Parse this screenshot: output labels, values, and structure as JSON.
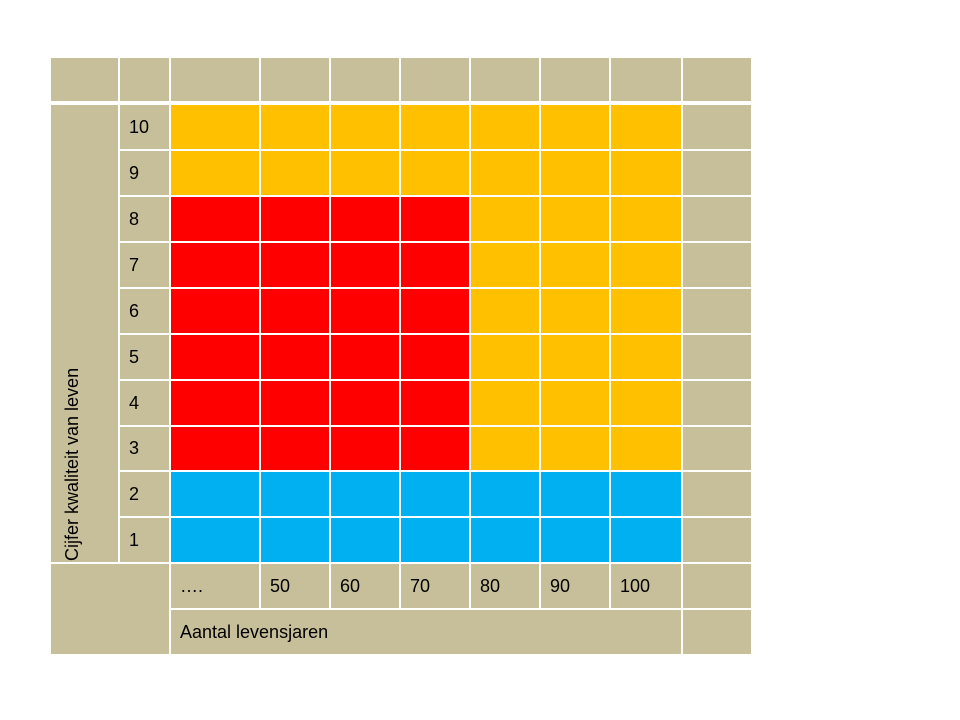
{
  "table": {
    "y_axis_title": "Cijfer kwaliteit van leven",
    "x_axis_title": "Aantal levensjaren",
    "x_labels": [
      "….",
      "50",
      "60",
      "70",
      "80",
      "90",
      "100"
    ],
    "rows": [
      {
        "label": "10",
        "colors": [
          "#ffc000",
          "#ffc000",
          "#ffc000",
          "#ffc000",
          "#ffc000",
          "#ffc000",
          "#ffc000"
        ]
      },
      {
        "label": "9",
        "colors": [
          "#ffc000",
          "#ffc000",
          "#ffc000",
          "#ffc000",
          "#ffc000",
          "#ffc000",
          "#ffc000"
        ]
      },
      {
        "label": "8",
        "colors": [
          "#ff0000",
          "#ff0000",
          "#ff0000",
          "#ff0000",
          "#ffc000",
          "#ffc000",
          "#ffc000"
        ]
      },
      {
        "label": "7",
        "colors": [
          "#ff0000",
          "#ff0000",
          "#ff0000",
          "#ff0000",
          "#ffc000",
          "#ffc000",
          "#ffc000"
        ]
      },
      {
        "label": "6",
        "colors": [
          "#ff0000",
          "#ff0000",
          "#ff0000",
          "#ff0000",
          "#ffc000",
          "#ffc000",
          "#ffc000"
        ]
      },
      {
        "label": "5",
        "colors": [
          "#ff0000",
          "#ff0000",
          "#ff0000",
          "#ff0000",
          "#ffc000",
          "#ffc000",
          "#ffc000"
        ]
      },
      {
        "label": "4",
        "colors": [
          "#ff0000",
          "#ff0000",
          "#ff0000",
          "#ff0000",
          "#ffc000",
          "#ffc000",
          "#ffc000"
        ]
      },
      {
        "label": "3",
        "colors": [
          "#ff0000",
          "#ff0000",
          "#ff0000",
          "#ff0000",
          "#ffc000",
          "#ffc000",
          "#ffc000"
        ]
      },
      {
        "label": "2",
        "colors": [
          "#00b0f0",
          "#00b0f0",
          "#00b0f0",
          "#00b0f0",
          "#00b0f0",
          "#00b0f0",
          "#00b0f0"
        ]
      },
      {
        "label": "1",
        "colors": [
          "#00b0f0",
          "#00b0f0",
          "#00b0f0",
          "#00b0f0",
          "#00b0f0",
          "#00b0f0",
          "#00b0f0"
        ]
      }
    ]
  }
}
